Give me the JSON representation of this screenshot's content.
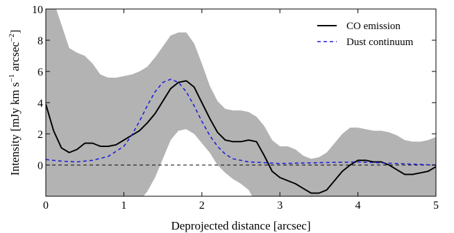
{
  "chart_data": {
    "type": "line",
    "xlabel": "Deprojected distance [arcsec]",
    "ylabel": "Intensity [mJy km s",
    "ylabel_parts": [
      "Intensity [mJy km s",
      "−1",
      "  arcsec",
      "−2",
      "]"
    ],
    "xlim": [
      0,
      5
    ],
    "ylim": [
      -2,
      10
    ],
    "xticks": [
      0,
      1,
      2,
      3,
      4,
      5
    ],
    "xtick_labels": [
      "0",
      "1",
      "2",
      "3",
      "4",
      "5"
    ],
    "yticks": [
      0,
      2,
      4,
      6,
      8,
      10
    ],
    "ytick_labels": [
      "0",
      "2",
      "4",
      "6",
      "8",
      "10"
    ],
    "grid": false,
    "legend_position": "top-right",
    "colors": {
      "co": "#000000",
      "dust": "#1f1fdc",
      "band": "#b3b3b3",
      "zero": "#000000"
    },
    "series": [
      {
        "name": "CO emission",
        "style": "solid",
        "x": [
          0,
          0.1,
          0.2,
          0.3,
          0.4,
          0.5,
          0.6,
          0.7,
          0.8,
          0.9,
          1.0,
          1.1,
          1.2,
          1.3,
          1.4,
          1.5,
          1.6,
          1.7,
          1.8,
          1.9,
          2.0,
          2.1,
          2.2,
          2.3,
          2.4,
          2.5,
          2.6,
          2.7,
          2.8,
          2.9,
          3.0,
          3.1,
          3.2,
          3.3,
          3.4,
          3.5,
          3.6,
          3.7,
          3.8,
          3.9,
          4.0,
          4.1,
          4.2,
          4.3,
          4.4,
          4.5,
          4.6,
          4.7,
          4.8,
          4.9,
          5.0
        ],
        "y": [
          3.9,
          2.2,
          1.1,
          0.8,
          1.0,
          1.4,
          1.4,
          1.2,
          1.2,
          1.3,
          1.6,
          1.9,
          2.2,
          2.7,
          3.3,
          4.1,
          4.9,
          5.3,
          5.4,
          5.0,
          4.0,
          3.0,
          2.1,
          1.6,
          1.5,
          1.5,
          1.6,
          1.5,
          0.6,
          -0.4,
          -0.8,
          -1.0,
          -1.2,
          -1.5,
          -1.8,
          -1.8,
          -1.6,
          -1.0,
          -0.4,
          0.0,
          0.3,
          0.3,
          0.2,
          0.2,
          0.0,
          -0.3,
          -0.6,
          -0.6,
          -0.5,
          -0.4,
          -0.1
        ]
      },
      {
        "name": "Dust continuum",
        "style": "dashed",
        "x": [
          0,
          0.2,
          0.4,
          0.6,
          0.8,
          1.0,
          1.1,
          1.2,
          1.3,
          1.4,
          1.5,
          1.6,
          1.7,
          1.8,
          1.9,
          2.0,
          2.1,
          2.2,
          2.3,
          2.4,
          2.6,
          2.8,
          3.0,
          3.5,
          4.0,
          4.5,
          5.0
        ],
        "y": [
          0.35,
          0.25,
          0.2,
          0.3,
          0.55,
          1.2,
          1.9,
          2.8,
          3.8,
          4.7,
          5.3,
          5.5,
          5.3,
          4.7,
          3.8,
          2.8,
          1.9,
          1.2,
          0.7,
          0.4,
          0.2,
          0.15,
          0.1,
          0.15,
          0.2,
          0.1,
          0.0
        ]
      }
    ],
    "band": {
      "x": [
        0,
        0.1,
        0.2,
        0.3,
        0.4,
        0.5,
        0.6,
        0.7,
        0.8,
        0.9,
        1.0,
        1.1,
        1.2,
        1.3,
        1.4,
        1.5,
        1.6,
        1.7,
        1.8,
        1.9,
        2.0,
        2.1,
        2.2,
        2.3,
        2.4,
        2.5,
        2.6,
        2.7,
        2.8,
        2.9,
        3.0,
        3.1,
        3.2,
        3.3,
        3.4,
        3.5,
        3.6,
        3.7,
        3.8,
        3.9,
        4.0,
        4.1,
        4.2,
        4.3,
        4.4,
        4.5,
        4.6,
        4.7,
        4.8,
        4.9,
        5.0
      ],
      "upper": [
        10.5,
        10.5,
        9.0,
        7.5,
        7.2,
        7.0,
        6.5,
        5.8,
        5.6,
        5.6,
        5.7,
        5.8,
        6.0,
        6.3,
        6.9,
        7.6,
        8.3,
        8.5,
        8.5,
        7.8,
        6.5,
        5.1,
        4.1,
        3.6,
        3.5,
        3.5,
        3.4,
        3.1,
        2.5,
        1.6,
        1.2,
        1.2,
        1.0,
        0.6,
        0.4,
        0.5,
        0.8,
        1.4,
        2.0,
        2.4,
        2.4,
        2.3,
        2.2,
        2.2,
        2.1,
        1.9,
        1.6,
        1.5,
        1.5,
        1.6,
        1.8
      ],
      "lower": [
        -2.5,
        -2.5,
        -2.5,
        -2.5,
        -2.5,
        -2.5,
        -2.5,
        -2.5,
        -2.5,
        -2.5,
        -2.5,
        -2.5,
        -2.3,
        -1.7,
        -0.8,
        0.4,
        1.6,
        2.2,
        2.3,
        2.0,
        1.4,
        0.8,
        0.0,
        -0.5,
        -0.9,
        -1.2,
        -1.6,
        -2.5,
        -2.5,
        -2.5,
        -2.5,
        -2.5,
        -2.5,
        -2.5,
        -2.5,
        -2.5,
        -2.5,
        -2.5,
        -2.5,
        -2.5,
        -2.5,
        -2.5,
        -2.5,
        -2.5,
        -2.5,
        -2.5,
        -2.5,
        -2.5,
        -2.5,
        -2.5,
        -2.5
      ]
    }
  }
}
